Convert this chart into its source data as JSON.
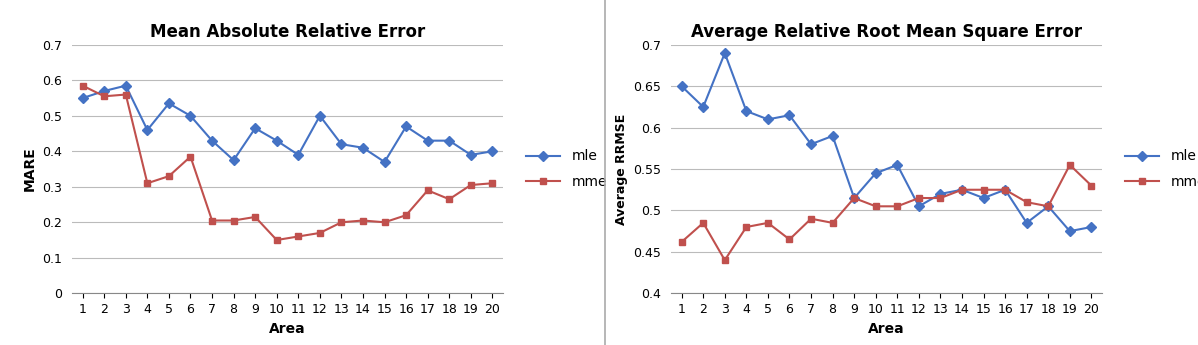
{
  "areas": [
    1,
    2,
    3,
    4,
    5,
    6,
    7,
    8,
    9,
    10,
    11,
    12,
    13,
    14,
    15,
    16,
    17,
    18,
    19,
    20
  ],
  "mare_mle": [
    0.55,
    0.57,
    0.585,
    0.46,
    0.535,
    0.5,
    0.43,
    0.375,
    0.465,
    0.43,
    0.39,
    0.5,
    0.42,
    0.41,
    0.37,
    0.47,
    0.43,
    0.43,
    0.39,
    0.4
  ],
  "mare_mme": [
    0.585,
    0.555,
    0.56,
    0.31,
    0.33,
    0.385,
    0.205,
    0.205,
    0.215,
    0.15,
    0.16,
    0.17,
    0.2,
    0.205,
    0.2,
    0.22,
    0.29,
    0.265,
    0.305,
    0.31
  ],
  "rrmse_mle": [
    0.65,
    0.625,
    0.69,
    0.62,
    0.61,
    0.615,
    0.58,
    0.59,
    0.515,
    0.545,
    0.555,
    0.505,
    0.52,
    0.525,
    0.515,
    0.525,
    0.485,
    0.505,
    0.475,
    0.48
  ],
  "rrmse_mme": [
    0.462,
    0.485,
    0.44,
    0.48,
    0.485,
    0.465,
    0.49,
    0.485,
    0.515,
    0.505,
    0.505,
    0.515,
    0.515,
    0.525,
    0.525,
    0.525,
    0.51,
    0.505,
    0.555,
    0.53
  ],
  "title1": "Mean Absolute Relative Error",
  "title2": "Average Relative Root Mean Square Error",
  "ylabel1": "MARE",
  "ylabel2": "Average RRMSE",
  "xlabel": "Area",
  "ylim1": [
    0,
    0.7
  ],
  "ylim2": [
    0.4,
    0.7
  ],
  "yticks1": [
    0,
    0.1,
    0.2,
    0.3,
    0.4,
    0.5,
    0.6,
    0.7
  ],
  "yticks1_labels": [
    "0",
    "0.1",
    "0.2",
    "0.3",
    "0.4",
    "0.5",
    "0.6",
    "0.7"
  ],
  "yticks2": [
    0.4,
    0.45,
    0.5,
    0.55,
    0.6,
    0.65,
    0.7
  ],
  "yticks2_labels": [
    "0.4",
    "0.45",
    "0.5",
    "0.55",
    "0.6",
    "0.65",
    "0.7"
  ],
  "color_mle": "#4472C4",
  "color_mme": "#C0504D",
  "legend_labels": [
    "mle",
    "mme"
  ],
  "background_color": "#FFFFFF",
  "divider_color": "#AAAAAA",
  "title_fontsize": 12,
  "label_fontsize": 10,
  "tick_fontsize": 9,
  "legend_fontsize": 10,
  "marker_size": 5,
  "line_width": 1.5
}
